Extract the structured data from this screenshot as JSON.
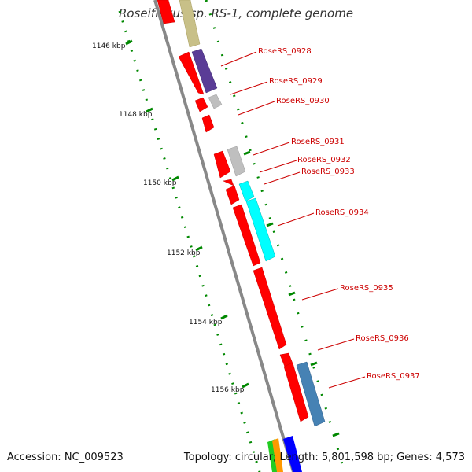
{
  "title": "Roseiflexus sp. RS-1, complete genome",
  "footer": {
    "accession": "Accession: NC_009523",
    "summary": "Topology: circular; Length: 5,801,598 bp; Genes: 4,573"
  },
  "kbp_labels": [
    "1146 kbp",
    "1148 kbp",
    "1150 kbp",
    "1152 kbp",
    "1154 kbp",
    "1156 kbp"
  ],
  "gene_labels": [
    "RoseRS_0928",
    "RoseRS_0929",
    "RoseRS_0930",
    "RoseRS_0931",
    "RoseRS_0932",
    "RoseRS_0933",
    "RoseRS_0934",
    "RoseRS_0935",
    "RoseRS_0936",
    "RoseRS_0937"
  ],
  "colors": {
    "cds": "#ff0000",
    "backbone": "#888888",
    "ticks": "#008800",
    "label": "#cc0000",
    "khaki": "#c8c088",
    "purple": "#5a3c96",
    "gray": "#bfbfbf",
    "cyan": "#00ffff",
    "steelblue": "#4682b4"
  }
}
